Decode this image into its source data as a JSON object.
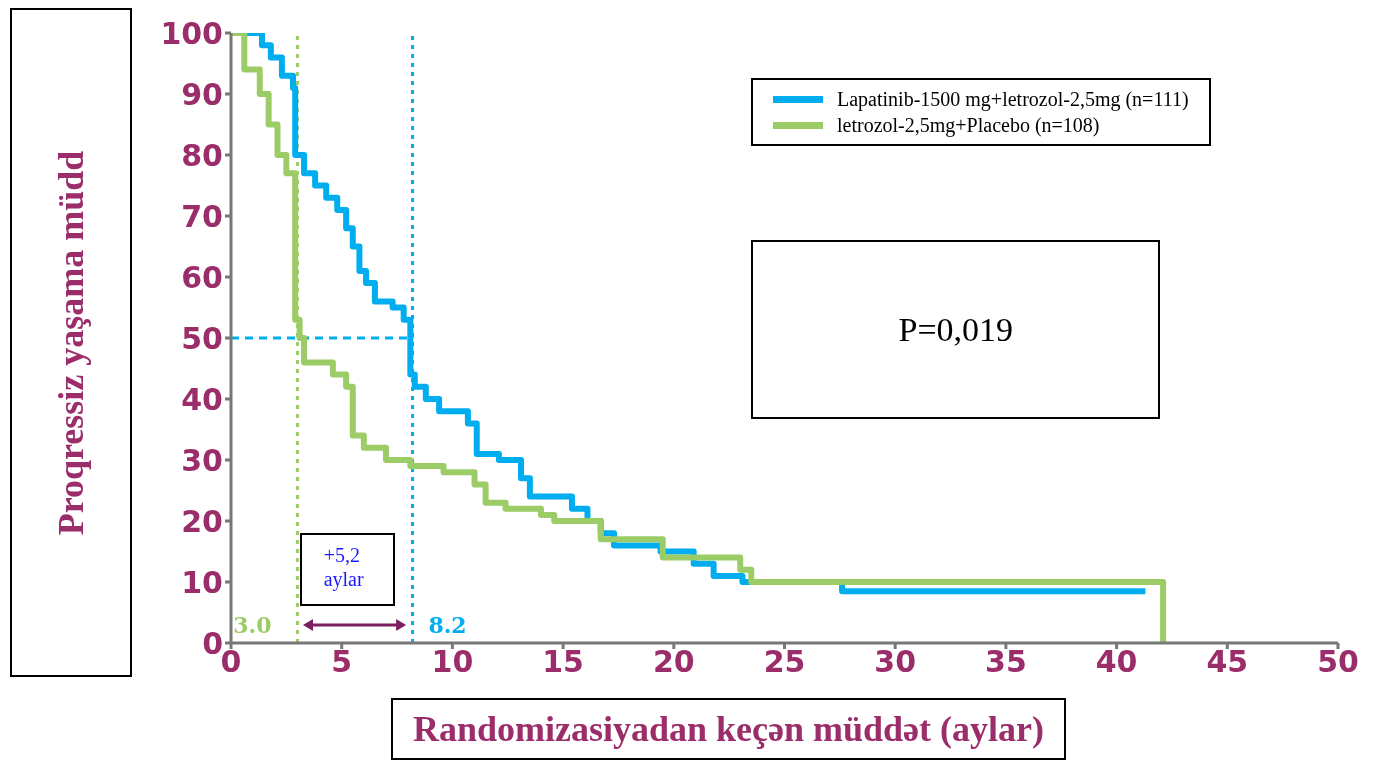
{
  "chart_data": {
    "type": "step",
    "xlabel": "Randomizasiyadan keçən müddət (aylar)",
    "ylabel": "Proqressiz yaşama müdd",
    "xlim": [
      0,
      50
    ],
    "xticks": [
      0,
      5,
      10,
      15,
      20,
      25,
      30,
      35,
      40,
      45,
      50
    ],
    "ylim": [
      0,
      100
    ],
    "yticks": [
      0,
      10,
      20,
      30,
      40,
      50,
      60,
      70,
      80,
      90,
      100
    ],
    "legend": "top right",
    "series": [
      {
        "name": "Lapatinib-1500 mg+letrozol-2,5mg (n=111)",
        "color": "#00aeef",
        "x": [
          0,
          1.4,
          1.8,
          2.3,
          2.8,
          2.9,
          3.3,
          3.8,
          4.3,
          4.8,
          5.2,
          5.5,
          5.8,
          6.1,
          6.5,
          7.3,
          7.8,
          8.1,
          8.3,
          8.8,
          9.4,
          10.7,
          11.1,
          12.1,
          13.1,
          13.5,
          15.4,
          16.1,
          16.7,
          17.3,
          19.4,
          20.9,
          21.8,
          23.1,
          27.6,
          41.3
        ],
        "values": [
          100,
          98,
          96,
          93,
          91,
          80,
          77,
          75,
          73,
          71,
          68,
          65,
          61,
          59,
          56,
          55,
          53,
          44,
          42,
          40,
          38,
          36,
          31,
          30,
          27,
          24,
          22,
          20,
          18,
          16,
          15,
          13,
          11,
          10,
          8.5,
          8.5
        ]
      },
      {
        "name": "letrozol-2,5mg+Placebo (n=108)",
        "color": "#9ccc65",
        "x": [
          0,
          0.6,
          1.3,
          1.7,
          2.1,
          2.5,
          2.9,
          3.1,
          3.3,
          4.6,
          5.2,
          5.5,
          6.0,
          7.0,
          8.1,
          9.6,
          11.0,
          11.5,
          12.4,
          14.0,
          14.6,
          16.7,
          19.5,
          21.0,
          23.0,
          23.5,
          42.1,
          42.1
        ],
        "values": [
          100,
          94,
          90,
          85,
          80,
          77,
          53,
          50,
          46,
          44,
          42,
          34,
          32,
          30,
          29,
          28,
          26,
          23,
          22,
          21,
          20,
          17,
          14,
          14,
          12,
          10,
          10,
          0
        ]
      }
    ],
    "ref_lines": [
      {
        "axis": "y",
        "value": 50,
        "color": "#00aeef",
        "line_style": "dashed"
      },
      {
        "axis": "x",
        "value": 3.0,
        "color": "#9ccc65",
        "line_style": "dotted"
      },
      {
        "axis": "x",
        "value": 8.2,
        "color": "#00aeef",
        "line_style": "dotted"
      }
    ],
    "annotations": [
      {
        "text": "3.0",
        "x": 3.0,
        "y": 3
      },
      {
        "text": "8.2",
        "x": 8.2,
        "y": 3
      },
      "+5,2 aylar",
      "P=0,019"
    ]
  }
}
